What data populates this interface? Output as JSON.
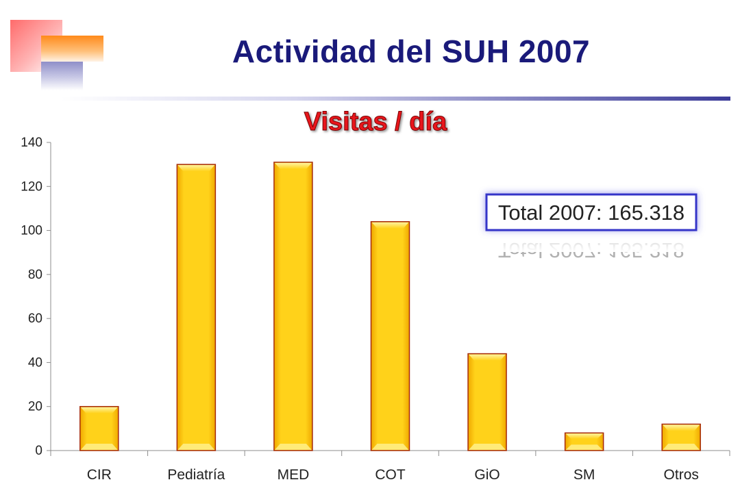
{
  "title": "Actividad del  SUH 2007",
  "chart_data": {
    "type": "bar",
    "title": "Visitas / día",
    "categories": [
      "CIR",
      "Pediatría",
      "MED",
      "COT",
      "GiO",
      "SM",
      "Otros"
    ],
    "values": [
      20,
      130,
      131,
      104,
      44,
      8,
      12
    ],
    "ylim": [
      0,
      140
    ],
    "yticks": [
      0,
      20,
      40,
      60,
      80,
      100,
      120,
      140
    ],
    "grid": false,
    "legend": "none",
    "bar_color": "#ffcc00",
    "bar_border_color": "#a52a0a",
    "annotation": "Total 2007: 165.318"
  }
}
